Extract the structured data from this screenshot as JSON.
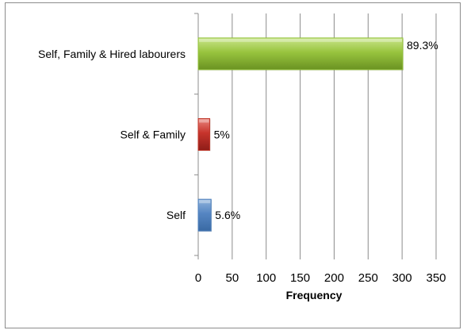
{
  "chart_data": {
    "type": "bar",
    "orientation": "horizontal",
    "title": "",
    "xlabel": "Frequency",
    "ylabel": "",
    "xlim": [
      0,
      350
    ],
    "x_ticks": [
      "0",
      "50",
      "100",
      "150",
      "200",
      "250",
      "300",
      "350"
    ],
    "grid": "vertical",
    "legend": "none",
    "categories": [
      "Self, Family & Hired labourers",
      "Self & Family",
      "Self"
    ],
    "values": [
      301,
      17,
      19
    ],
    "data_labels": [
      "89.3%",
      "5%",
      "5.6%"
    ],
    "colors": [
      "#92c13a",
      "#c0392b",
      "#4f81bd"
    ]
  }
}
